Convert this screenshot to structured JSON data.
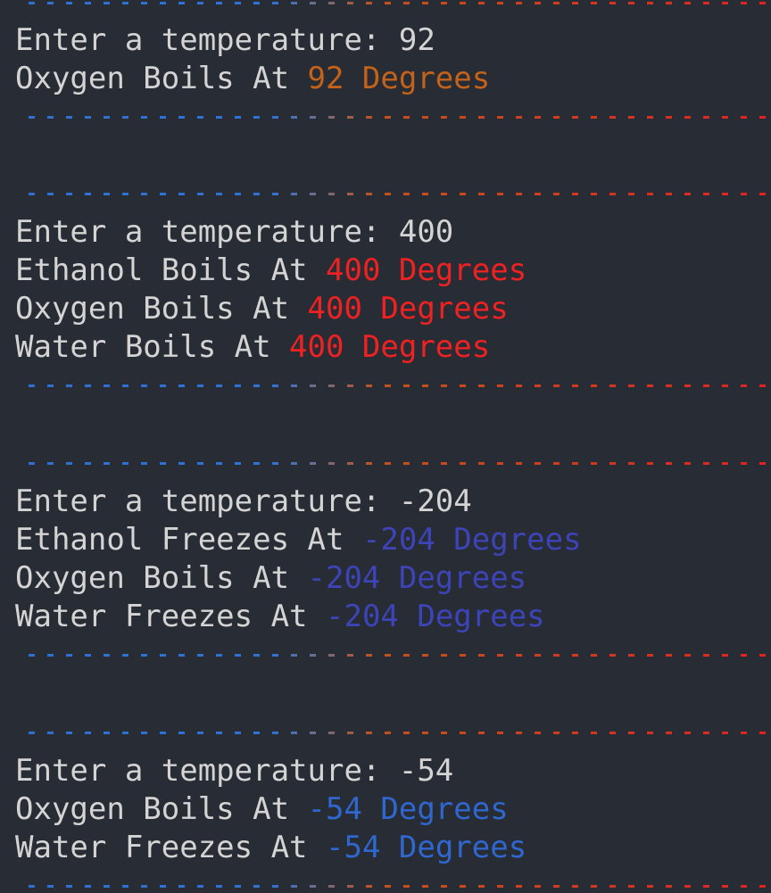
{
  "colors": {
    "background": "#282c34",
    "text": "#d4d4d4",
    "orange": "#c3621b",
    "red": "#ee2222",
    "indigo": "#3d44b8",
    "blue": "#2f67cf"
  },
  "blocks": [
    {
      "prompt": "Enter a temperature: 92",
      "results": [
        {
          "label": "Oxygen Boils At ",
          "value": "92 Degrees"
        }
      ]
    },
    {
      "prompt": "Enter a temperature: 400",
      "results": [
        {
          "label": "Ethanol Boils At ",
          "value": "400 Degrees"
        },
        {
          "label": "Oxygen Boils At ",
          "value": "400 Degrees"
        },
        {
          "label": "Water Boils At ",
          "value": "400 Degrees"
        }
      ]
    },
    {
      "prompt": "Enter a temperature: -204",
      "results": [
        {
          "label": "Ethanol Freezes At ",
          "value": "-204 Degrees"
        },
        {
          "label": "Oxygen Boils At ",
          "value": "-204 Degrees"
        },
        {
          "label": "Water Freezes At ",
          "value": "-204 Degrees"
        }
      ]
    },
    {
      "prompt": "Enter a temperature: -54",
      "results": [
        {
          "label": "Oxygen Boils At ",
          "value": "-54 Degrees"
        },
        {
          "label": "Water Freezes At ",
          "value": "-54 Degrees"
        }
      ]
    }
  ]
}
